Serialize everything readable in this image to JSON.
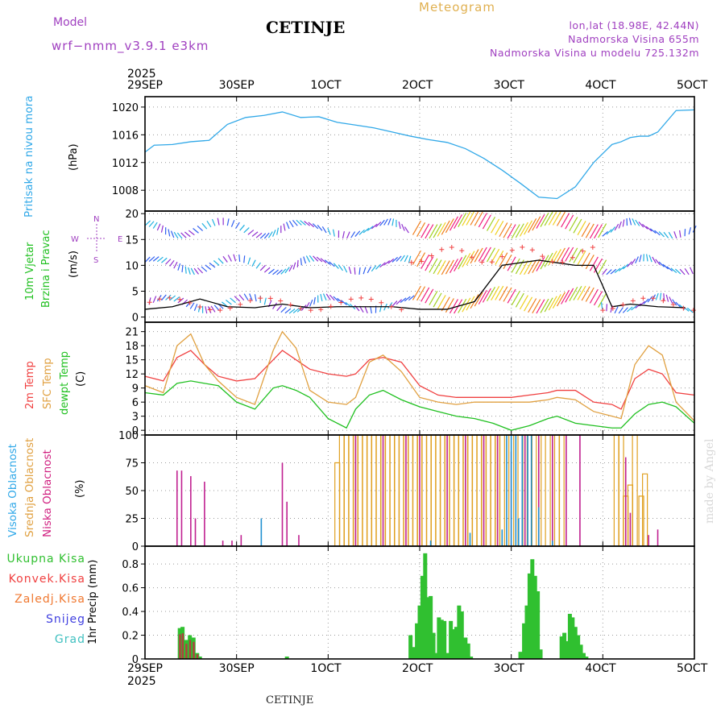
{
  "header": {
    "model_label": "Model",
    "model_version": "wrf−nmm_v3.9.1  e3km",
    "station": "CETINJE",
    "product": "Meteogram",
    "lonlat": "lon,lat (18.98E, 42.44N)",
    "elevation": "Nadmorska Visina 655m",
    "model_elevation": "Nadmorska Visina u modelu 725.132m"
  },
  "footer_station": "CETINJE",
  "watermark": "made by Angel",
  "year": "2025",
  "x_ticks": [
    "29SEP",
    "30SEP",
    "1OCT",
    "2OCT",
    "3OCT",
    "4OCT",
    "5OCT"
  ],
  "colors": {
    "pressure": "#30a8e8",
    "temp2m": "#f04040",
    "sfc": "#e0a040",
    "dew": "#20c020",
    "high": "#2090d0",
    "mid": "#e0a020",
    "low": "#c02090",
    "total": "#30c030",
    "conv": "#f04040"
  },
  "chart_data": [
    {
      "type": "line",
      "title": "Pritisak na nivou mora",
      "ylabel": "(hPa)",
      "ylim": [
        1005,
        1021.5
      ],
      "yticks": [
        1008,
        1012,
        1016,
        1020
      ],
      "x_days": [
        0,
        0.1,
        0.3,
        0.5,
        0.7,
        0.9,
        1.1,
        1.3,
        1.5,
        1.7,
        1.9,
        2.1,
        2.3,
        2.5,
        2.7,
        2.9,
        3.1,
        3.3,
        3.5,
        3.7,
        3.9,
        4.1,
        4.3,
        4.5,
        4.7,
        4.9,
        5,
        5.1,
        5.2,
        5.3,
        5.4,
        5.5,
        5.6,
        5.8,
        6.0
      ],
      "series": [
        {
          "name": "Pritisak",
          "values": [
            1013.5,
            1014.5,
            1014.6,
            1015.0,
            1015.2,
            1017.5,
            1018.5,
            1018.8,
            1019.3,
            1018.5,
            1018.6,
            1017.8,
            1017.4,
            1017.0,
            1016.4,
            1015.8,
            1015.3,
            1014.9,
            1014.0,
            1012.6,
            1010.9,
            1009.0,
            1007.0,
            1006.8,
            1008.5,
            1012.0,
            1013.3,
            1014.6,
            1015.0,
            1015.6,
            1015.8,
            1015.8,
            1016.4,
            1019.5,
            1019.6
          ]
        }
      ]
    },
    {
      "type": "line",
      "title": "10m Vjetar",
      "subtitle": "Brzina i Pravac",
      "ylabel": "(m/s)",
      "ylim": [
        -1,
        20.5
      ],
      "yticks": [
        0,
        5,
        10,
        15,
        20
      ],
      "x_days": [
        0,
        0.3,
        0.6,
        0.9,
        1.2,
        1.5,
        1.8,
        2.1,
        2.4,
        2.7,
        3.0,
        3.3,
        3.6,
        3.9,
        4.1,
        4.3,
        4.5,
        4.7,
        4.9,
        5.1,
        5.3,
        5.6,
        5.9
      ],
      "series": [
        {
          "name": "Brzina vjetra",
          "values": [
            1.5,
            2.0,
            3.5,
            2.0,
            1.8,
            2.5,
            1.8,
            2.0,
            2.0,
            2.0,
            1.5,
            1.5,
            3.0,
            10.0,
            10.5,
            11.0,
            10.5,
            10.0,
            10.0,
            2.0,
            2.5,
            2.0,
            1.8
          ]
        }
      ],
      "compass": {
        "north": "N",
        "west": "W",
        "east": "E",
        "south": "S"
      }
    },
    {
      "type": "line",
      "ylabel": "(C)",
      "ylim": [
        -1,
        23
      ],
      "yticks": [
        0,
        3,
        6,
        9,
        12,
        15,
        18,
        21
      ],
      "x_days": [
        0,
        0.2,
        0.35,
        0.5,
        0.65,
        0.8,
        1.0,
        1.2,
        1.4,
        1.5,
        1.65,
        1.8,
        2.0,
        2.2,
        2.3,
        2.45,
        2.6,
        2.8,
        3.0,
        3.2,
        3.4,
        3.6,
        3.8,
        4.0,
        4.2,
        4.4,
        4.5,
        4.7,
        4.9,
        5.1,
        5.2,
        5.35,
        5.5,
        5.65,
        5.8,
        6.0
      ],
      "series": [
        {
          "name": "2m Temp",
          "values": [
            11.5,
            10.5,
            15.5,
            17.0,
            14.0,
            11.5,
            10.5,
            11.0,
            15.0,
            17.0,
            15.0,
            13.0,
            12.0,
            11.5,
            12.0,
            15.0,
            15.5,
            14.5,
            9.5,
            7.5,
            7.0,
            7.0,
            7.0,
            7.0,
            7.5,
            8.0,
            8.5,
            8.5,
            6.0,
            5.5,
            4.5,
            11.0,
            13.0,
            12.0,
            8.0,
            7.5
          ]
        },
        {
          "name": "SFC Temp",
          "values": [
            9.5,
            8.0,
            18.0,
            20.5,
            14.0,
            10.5,
            7.0,
            5.5,
            17.0,
            21.0,
            17.5,
            8.5,
            6.0,
            5.5,
            7.0,
            14.5,
            16.0,
            12.5,
            7.0,
            6.0,
            5.5,
            6.0,
            6.0,
            6.0,
            6.0,
            6.5,
            7.0,
            6.5,
            4.0,
            3.0,
            2.5,
            14.0,
            18.0,
            16.0,
            6.0,
            2.0
          ]
        },
        {
          "name": "dewpt Temp",
          "values": [
            8.0,
            7.5,
            10.0,
            10.5,
            10.0,
            9.5,
            6.0,
            4.5,
            9.0,
            9.5,
            8.5,
            7.0,
            2.5,
            0.5,
            4.5,
            7.5,
            8.5,
            6.5,
            5.0,
            4.0,
            3.0,
            2.5,
            1.5,
            0,
            1.0,
            2.5,
            3.0,
            1.5,
            1.0,
            0.5,
            0.5,
            3.5,
            5.5,
            6.0,
            5.0,
            1.5
          ]
        }
      ]
    },
    {
      "type": "bar",
      "ylabel": "(%)",
      "ylim": [
        0,
        100
      ],
      "yticks": [
        0,
        25,
        50,
        75,
        100
      ],
      "x_range_days": [
        0,
        6
      ],
      "series": [
        {
          "name": "Visoka Oblacnost",
          "bars": [
            [
              1.27,
              25
            ],
            [
              3.12,
              5
            ],
            [
              3.55,
              12
            ],
            [
              3.9,
              15
            ],
            [
              3.95,
              100
            ],
            [
              4.0,
              100
            ],
            [
              4.05,
              100
            ],
            [
              4.08,
              25
            ],
            [
              4.12,
              100
            ],
            [
              4.18,
              100
            ],
            [
              4.22,
              100
            ],
            [
              4.3,
              35
            ],
            [
              4.45,
              5
            ]
          ]
        },
        {
          "name": "Srednja Oblacnost",
          "bars": [
            [
              2.1,
              75
            ],
            [
              2.15,
              100
            ],
            [
              2.2,
              100
            ],
            [
              2.25,
              100
            ],
            [
              2.3,
              100
            ],
            [
              2.35,
              100
            ],
            [
              2.4,
              100
            ],
            [
              2.45,
              100
            ],
            [
              2.5,
              100
            ],
            [
              2.55,
              100
            ],
            [
              2.6,
              100
            ],
            [
              2.65,
              100
            ],
            [
              2.7,
              100
            ],
            [
              2.75,
              100
            ],
            [
              2.8,
              100
            ],
            [
              2.85,
              100
            ],
            [
              2.9,
              100
            ],
            [
              2.95,
              100
            ],
            [
              3.0,
              100
            ],
            [
              3.05,
              100
            ],
            [
              3.1,
              100
            ],
            [
              3.15,
              100
            ],
            [
              3.2,
              100
            ],
            [
              3.25,
              100
            ],
            [
              3.3,
              100
            ],
            [
              3.35,
              100
            ],
            [
              3.4,
              100
            ],
            [
              3.45,
              100
            ],
            [
              3.5,
              100
            ],
            [
              3.55,
              100
            ],
            [
              3.6,
              100
            ],
            [
              3.65,
              100
            ],
            [
              3.7,
              100
            ],
            [
              3.75,
              100
            ],
            [
              3.8,
              100
            ],
            [
              3.85,
              100
            ],
            [
              3.9,
              100
            ],
            [
              4.0,
              100
            ],
            [
              4.1,
              100
            ],
            [
              4.2,
              100
            ],
            [
              4.3,
              100
            ],
            [
              4.4,
              100
            ],
            [
              4.5,
              100
            ],
            [
              4.55,
              100
            ],
            [
              5.15,
              100
            ],
            [
              5.2,
              100
            ],
            [
              5.25,
              45
            ],
            [
              5.3,
              55
            ],
            [
              5.35,
              100
            ],
            [
              5.42,
              45
            ],
            [
              5.46,
              65
            ]
          ]
        },
        {
          "name": "Niska Oblacnost",
          "bars": [
            [
              0.35,
              68
            ],
            [
              0.4,
              68
            ],
            [
              0.5,
              63
            ],
            [
              0.55,
              25
            ],
            [
              0.65,
              58
            ],
            [
              0.85,
              5
            ],
            [
              0.95,
              5
            ],
            [
              1.05,
              10
            ],
            [
              1.5,
              75
            ],
            [
              1.55,
              40
            ],
            [
              1.68,
              10
            ],
            [
              2.3,
              100
            ],
            [
              2.6,
              100
            ],
            [
              2.85,
              100
            ],
            [
              3.0,
              100
            ],
            [
              3.3,
              100
            ],
            [
              3.5,
              100
            ],
            [
              3.7,
              100
            ],
            [
              3.85,
              100
            ],
            [
              4.0,
              85
            ],
            [
              4.15,
              100
            ],
            [
              4.3,
              100
            ],
            [
              4.45,
              100
            ],
            [
              4.6,
              100
            ],
            [
              4.75,
              100
            ],
            [
              5.25,
              80
            ],
            [
              5.3,
              30
            ],
            [
              5.5,
              10
            ],
            [
              5.6,
              15
            ]
          ]
        }
      ]
    },
    {
      "type": "bar",
      "ylabel": "1hr Precip (mm)",
      "ylim": [
        0,
        0.95
      ],
      "yticks": [
        0,
        0.2,
        0.4,
        0.6,
        0.8
      ],
      "x_range_days": [
        0,
        6
      ],
      "legend": [
        "Ukupna Kisa",
        "Konvek.Kisa",
        "Zaledj.Kisa",
        "Snijeg",
        "Grad"
      ],
      "series": [
        {
          "name": "Ukupna Kisa",
          "bars": [
            [
              0.38,
              0.26
            ],
            [
              0.41,
              0.27
            ],
            [
              0.45,
              0.16
            ],
            [
              0.49,
              0.2
            ],
            [
              0.53,
              0.18
            ],
            [
              0.57,
              0.05
            ],
            [
              0.6,
              0.02
            ],
            [
              1.55,
              0.02
            ],
            [
              2.9,
              0.2
            ],
            [
              2.94,
              0.1
            ],
            [
              2.97,
              0.3
            ],
            [
              3.0,
              0.45
            ],
            [
              3.03,
              0.7
            ],
            [
              3.06,
              0.89
            ],
            [
              3.09,
              0.52
            ],
            [
              3.12,
              0.53
            ],
            [
              3.15,
              0.22
            ],
            [
              3.18,
              0.05
            ],
            [
              3.21,
              0.35
            ],
            [
              3.24,
              0.33
            ],
            [
              3.27,
              0.32
            ],
            [
              3.3,
              0.05
            ],
            [
              3.34,
              0.32
            ],
            [
              3.37,
              0.25
            ],
            [
              3.4,
              0.27
            ],
            [
              3.43,
              0.45
            ],
            [
              3.46,
              0.4
            ],
            [
              3.5,
              0.18
            ],
            [
              3.53,
              0.13
            ],
            [
              3.56,
              0.02
            ],
            [
              4.1,
              0.06
            ],
            [
              4.14,
              0.3
            ],
            [
              4.17,
              0.45
            ],
            [
              4.2,
              0.72
            ],
            [
              4.23,
              0.84
            ],
            [
              4.26,
              0.7
            ],
            [
              4.29,
              0.57
            ],
            [
              4.32,
              0.08
            ],
            [
              4.55,
              0.19
            ],
            [
              4.58,
              0.22
            ],
            [
              4.61,
              0.15
            ],
            [
              4.64,
              0.38
            ],
            [
              4.67,
              0.35
            ],
            [
              4.7,
              0.27
            ],
            [
              4.73,
              0.2
            ],
            [
              4.76,
              0.12
            ],
            [
              4.79,
              0.05
            ],
            [
              4.82,
              0.02
            ]
          ]
        },
        {
          "name": "Konvek.Kisa",
          "bars": [
            [
              0.38,
              0.26
            ],
            [
              0.41,
              0.27
            ],
            [
              0.45,
              0.16
            ],
            [
              0.49,
              0.2
            ],
            [
              0.53,
              0.18
            ],
            [
              0.57,
              0.05
            ]
          ]
        }
      ]
    }
  ],
  "labels": {
    "pressure": "Pritisak na nivou mora",
    "pressure_unit": "(hPa)",
    "wind1": "10m Vjetar",
    "wind2": "Brzina i Pravac",
    "wind_unit": "(m/s)",
    "temp2m": "2m Temp",
    "tempsfc": "SFC Temp",
    "tempdew": "dewpt Temp",
    "temp_unit": "(C)",
    "cloud_high": "Visoka Oblacnost",
    "cloud_mid": "Srednja Oblacnost",
    "cloud_low": "Niska Oblacnost",
    "cloud_unit": "(%)",
    "precip_unit": "1hr Precip (mm)",
    "leg_total": "Ukupna Kisa",
    "leg_conv": "Konvek.Kisa",
    "leg_frz": "Zaledj.Kisa",
    "leg_snow": "Snijeg",
    "leg_grad": "Grad"
  }
}
